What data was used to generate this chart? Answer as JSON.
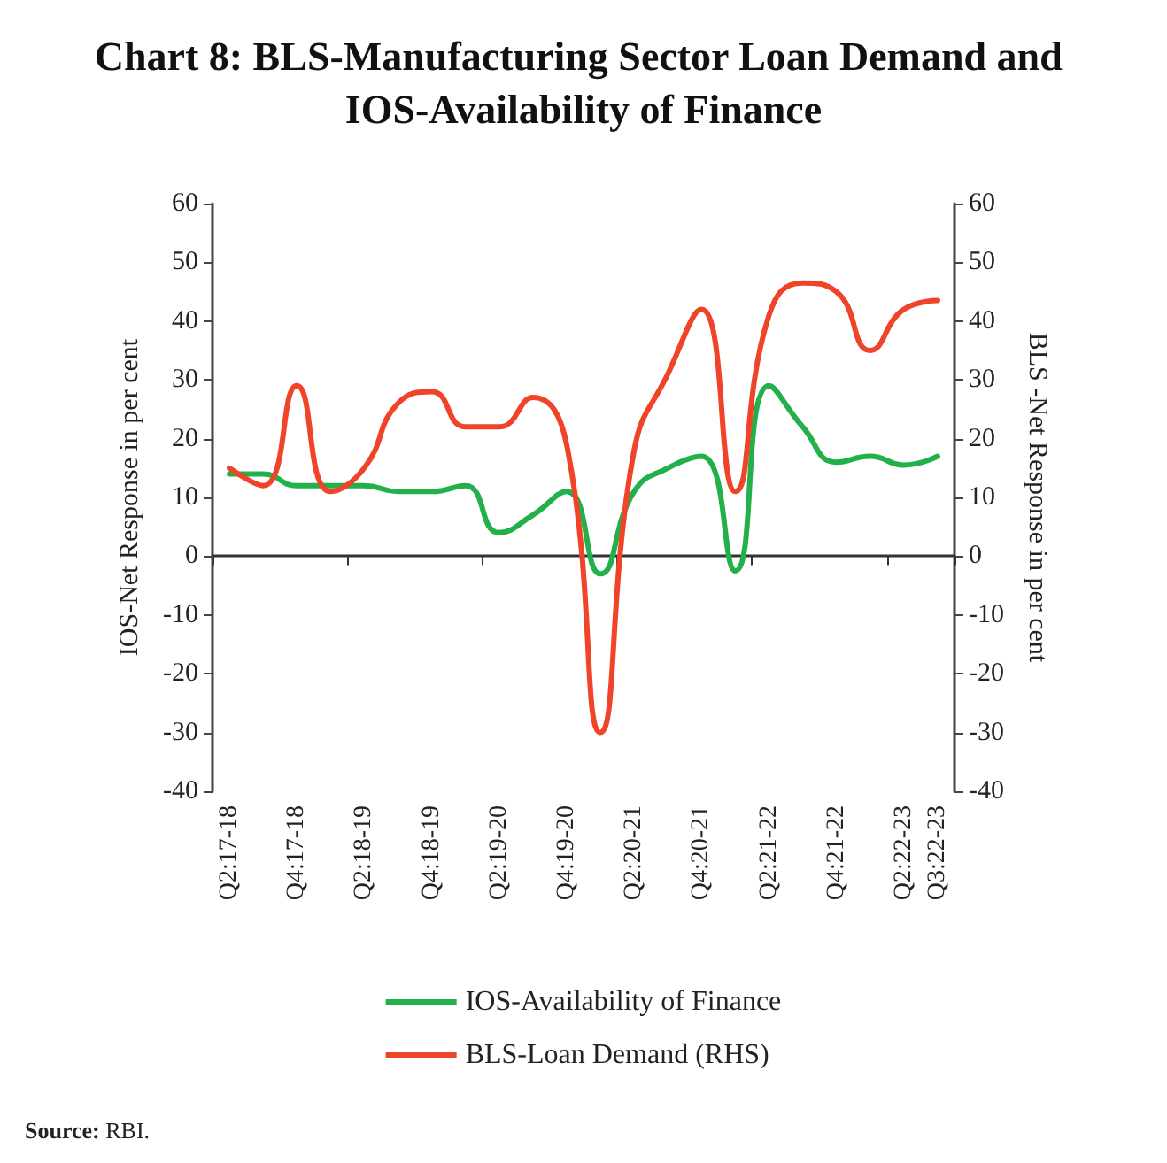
{
  "chart_data": {
    "type": "line",
    "title": "Chart 8: BLS-Manufacturing Sector Loan Demand and IOS-Availability of Finance",
    "ylabel": "IOS-Net Response in per cent",
    "y2label": "BLS -Net Response in per cent",
    "categories": [
      "Q2:17-18",
      null,
      "Q4:17-18",
      null,
      "Q2:18-19",
      null,
      "Q4:18-19",
      null,
      "Q2:19-20",
      null,
      "Q4:19-20",
      null,
      "Q2:20-21",
      null,
      "Q4:20-21",
      null,
      "Q2:21-22",
      null,
      "Q4:21-22",
      null,
      "Q2:22-23",
      "Q3:22-23"
    ],
    "series": [
      {
        "name": "IOS-Availability of Finance",
        "color": "#22b04b",
        "values": [
          14,
          14,
          12,
          12,
          12,
          11,
          11,
          12,
          4,
          7,
          11,
          -3,
          11,
          15,
          17,
          -2.5,
          29,
          22,
          16,
          17,
          15.5,
          17
        ]
      },
      {
        "name": "BLS-Loan Demand (RHS)",
        "color": "#f0442a",
        "axis": "y2",
        "values": [
          15,
          12,
          29,
          11,
          15,
          26,
          28,
          22,
          22,
          27,
          19,
          -30,
          18,
          31,
          42,
          11,
          41,
          46.5,
          45,
          35,
          42,
          43.5
        ]
      }
    ],
    "ylim": [
      -40,
      60
    ],
    "yticks": [
      -40,
      -30,
      -20,
      -10,
      0,
      10,
      20,
      30,
      40,
      50,
      60
    ],
    "y2lim": [
      -40,
      60
    ],
    "y2ticks": [
      -40,
      -30,
      -20,
      -10,
      0,
      10,
      20,
      30,
      40,
      50,
      60
    ],
    "legend": "bottom",
    "marker": "none",
    "line_style": "solid",
    "annotations": [
      "Source: RBI."
    ]
  }
}
